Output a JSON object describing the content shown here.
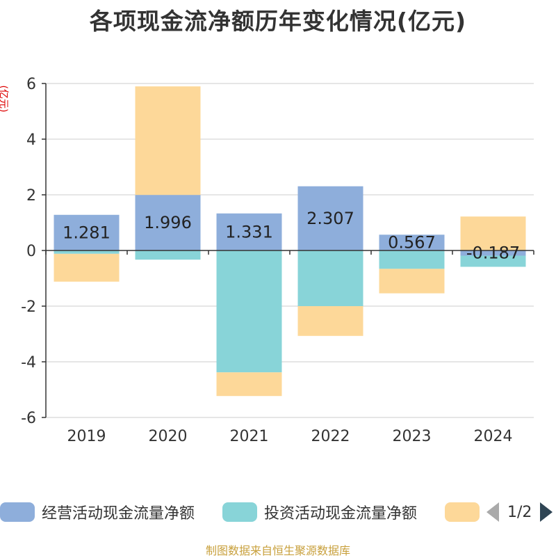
{
  "title": "各项现金流净额历年变化情况(亿元)",
  "source": "制图数据来自恒生聚源数据库",
  "legend_pager": "1/2",
  "chart_data": {
    "type": "bar",
    "stacked": true,
    "title": "各项现金流净额历年变化情况(亿元)",
    "ylabel": "(亿元)",
    "xlabel": "",
    "categories": [
      "2019",
      "2020",
      "2021",
      "2022",
      "2023",
      "2024"
    ],
    "ylim": [
      -6,
      6
    ],
    "yticks": [
      6,
      4,
      2,
      0,
      -2,
      -4,
      -6
    ],
    "grid": true,
    "legend_position": "bottom",
    "series": [
      {
        "name": "经营活动现金流量净额",
        "color": "#8eaedb",
        "values": [
          1.281,
          1.996,
          1.331,
          2.307,
          0.567,
          -0.187
        ],
        "labels": [
          "1.281",
          "1.996",
          "1.331",
          "2.307",
          "0.567",
          "-0.187"
        ]
      },
      {
        "name": "投资活动现金流量净额",
        "color": "#88d4d8",
        "values": [
          -0.12,
          -0.33,
          -4.38,
          -2.0,
          -0.66,
          -0.4
        ]
      },
      {
        "name": "",
        "color": "#fdd899",
        "values": [
          -1.0,
          3.9,
          -0.85,
          -1.07,
          -0.88,
          1.22
        ]
      }
    ]
  }
}
